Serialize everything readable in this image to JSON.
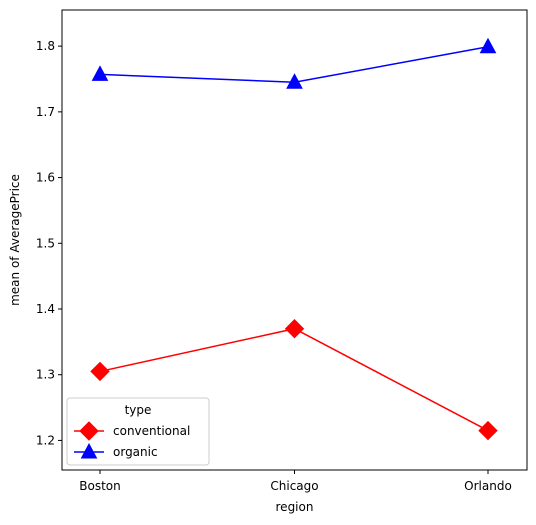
{
  "chart_data": {
    "type": "line",
    "title": "",
    "xlabel": "region",
    "ylabel": "mean of AveragePrice",
    "categories": [
      "Boston",
      "Chicago",
      "Orlando"
    ],
    "series": [
      {
        "name": "conventional",
        "values": [
          1.305,
          1.37,
          1.215
        ],
        "color": "#ff0000",
        "marker": "diamond"
      },
      {
        "name": "organic",
        "values": [
          1.757,
          1.745,
          1.799
        ],
        "color": "#0000ff",
        "marker": "triangle-up"
      }
    ],
    "ylim": [
      1.155,
      1.855
    ],
    "yticks": [
      "1.2",
      "1.3",
      "1.4",
      "1.5",
      "1.6",
      "1.7",
      "1.8"
    ],
    "grid": false,
    "legend": {
      "title": "type",
      "placement": "bottom-left"
    }
  }
}
